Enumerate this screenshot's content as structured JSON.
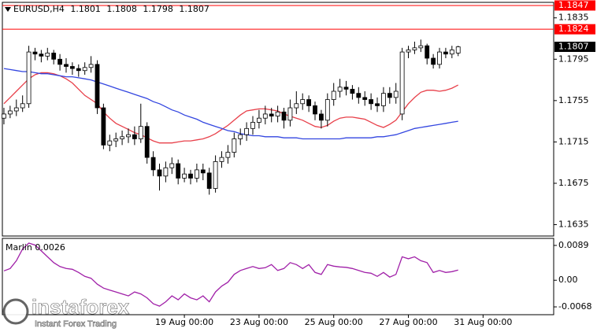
{
  "chart_data": [
    {
      "type": "candlestick",
      "symbol": "EURUSD,H4",
      "xlim": [
        -0.25,
        88.35
      ],
      "ylim": [
        1.1624,
        1.185
      ],
      "yticks": [
        1.1635,
        1.1675,
        1.1715,
        1.1755,
        1.1795,
        1.1835
      ],
      "levels": [
        {
          "value": 1.1847,
          "color": "#ff0000"
        },
        {
          "value": 1.1824,
          "color": "#ff0000"
        }
      ],
      "up_color": "#ffffff",
      "down_color": "#000000",
      "open": [
        1.1738,
        1.1742,
        1.1745,
        1.1748,
        1.1752,
        1.1802,
        1.18,
        1.1798,
        1.1801,
        1.1795,
        1.179,
        1.1788,
        1.1786,
        1.1784,
        1.1787,
        1.179,
        1.1748,
        1.1712,
        1.1716,
        1.1718,
        1.172,
        1.1722,
        1.1718,
        1.173,
        1.17,
        1.1688,
        1.1682,
        1.169,
        1.1694,
        1.168,
        1.1684,
        1.168,
        1.1688,
        1.1685,
        1.167,
        1.1696,
        1.17,
        1.1705,
        1.1718,
        1.1722,
        1.1728,
        1.1734,
        1.1738,
        1.1742,
        1.174,
        1.1744,
        1.1736,
        1.1748,
        1.1752,
        1.1756,
        1.175,
        1.1742,
        1.1736,
        1.1756,
        1.1764,
        1.1768,
        1.1766,
        1.1762,
        1.1758,
        1.1756,
        1.1752,
        1.175,
        1.1762,
        1.1758,
        1.1742,
        1.1802,
        1.1804,
        1.1806,
        1.1808,
        1.1796,
        1.179,
        1.1802,
        1.18,
        1.1801
      ],
      "high": [
        1.1748,
        1.175,
        1.1756,
        1.176,
        1.1808,
        1.1806,
        1.1804,
        1.1806,
        1.1804,
        1.18,
        1.1796,
        1.1792,
        1.179,
        1.1792,
        1.1798,
        1.1794,
        1.1752,
        1.1722,
        1.1724,
        1.1726,
        1.1728,
        1.173,
        1.1752,
        1.1734,
        1.1706,
        1.1694,
        1.1696,
        1.17,
        1.1698,
        1.169,
        1.1688,
        1.1694,
        1.1694,
        1.169,
        1.1702,
        1.1706,
        1.1712,
        1.1724,
        1.1728,
        1.1734,
        1.174,
        1.1746,
        1.175,
        1.1748,
        1.175,
        1.1748,
        1.1756,
        1.1764,
        1.1762,
        1.176,
        1.1754,
        1.1746,
        1.1762,
        1.1772,
        1.1776,
        1.1774,
        1.177,
        1.1768,
        1.1764,
        1.1762,
        1.1758,
        1.1768,
        1.1768,
        1.1772,
        1.1806,
        1.1808,
        1.1812,
        1.1814,
        1.181,
        1.18,
        1.1806,
        1.1806,
        1.1808,
        1.1808
      ],
      "low": [
        1.1732,
        1.1738,
        1.174,
        1.1744,
        1.1748,
        1.1794,
        1.1792,
        1.1794,
        1.179,
        1.1784,
        1.1782,
        1.178,
        1.1778,
        1.178,
        1.1782,
        1.1742,
        1.1708,
        1.1706,
        1.171,
        1.1712,
        1.1714,
        1.1712,
        1.1714,
        1.1694,
        1.1682,
        1.1668,
        1.1676,
        1.1684,
        1.1674,
        1.1676,
        1.1674,
        1.1676,
        1.1678,
        1.1664,
        1.1666,
        1.169,
        1.1694,
        1.17,
        1.1712,
        1.1716,
        1.1722,
        1.1728,
        1.1732,
        1.1734,
        1.1734,
        1.1728,
        1.173,
        1.1742,
        1.1746,
        1.1744,
        1.1736,
        1.1728,
        1.173,
        1.175,
        1.1758,
        1.176,
        1.1756,
        1.1752,
        1.175,
        1.1746,
        1.1744,
        1.1744,
        1.1752,
        1.1752,
        1.1736,
        1.1796,
        1.18,
        1.1802,
        1.179,
        1.1786,
        1.1786,
        1.1796,
        1.1796,
        1.1798
      ],
      "close": [
        1.1742,
        1.1745,
        1.1748,
        1.1752,
        1.1802,
        1.18,
        1.1798,
        1.1801,
        1.1795,
        1.179,
        1.1788,
        1.1786,
        1.1784,
        1.1787,
        1.179,
        1.1748,
        1.1712,
        1.1716,
        1.1718,
        1.172,
        1.1722,
        1.1718,
        1.173,
        1.17,
        1.1688,
        1.1682,
        1.169,
        1.1694,
        1.168,
        1.1684,
        1.168,
        1.1688,
        1.1685,
        1.167,
        1.1696,
        1.17,
        1.1705,
        1.1718,
        1.1722,
        1.1728,
        1.1734,
        1.1738,
        1.1742,
        1.174,
        1.1744,
        1.1736,
        1.1748,
        1.1752,
        1.1756,
        1.175,
        1.1742,
        1.1736,
        1.1756,
        1.1764,
        1.1768,
        1.1766,
        1.1762,
        1.1758,
        1.1756,
        1.1752,
        1.175,
        1.1762,
        1.1758,
        1.1764,
        1.1802,
        1.1804,
        1.1806,
        1.1808,
        1.1796,
        1.179,
        1.1802,
        1.18,
        1.1804,
        1.1807
      ],
      "series": [
        {
          "color": "#e8404a",
          "values": [
            1.1752,
            1.1758,
            1.1764,
            1.177,
            1.1776,
            1.178,
            1.1782,
            1.1782,
            1.1781,
            1.1779,
            1.1776,
            1.1772,
            1.1766,
            1.176,
            1.1756,
            1.1752,
            1.1744,
            1.1738,
            1.1733,
            1.173,
            1.1727,
            1.1724,
            1.1722,
            1.1719,
            1.1716,
            1.1714,
            1.1714,
            1.1714,
            1.1715,
            1.1716,
            1.1716,
            1.1717,
            1.1718,
            1.172,
            1.1723,
            1.1727,
            1.1731,
            1.1736,
            1.1741,
            1.1745,
            1.1746,
            1.1747,
            1.1747,
            1.1746,
            1.1745,
            1.1742,
            1.174,
            1.1738,
            1.1736,
            1.1733,
            1.173,
            1.1729,
            1.1731,
            1.1735,
            1.1738,
            1.1739,
            1.1739,
            1.1738,
            1.1737,
            1.1734,
            1.1731,
            1.1729,
            1.1732,
            1.1736,
            1.1744,
            1.1752,
            1.1758,
            1.1763,
            1.1765,
            1.1765,
            1.1764,
            1.1765,
            1.1767,
            1.177
          ]
        },
        {
          "color": "#3346e0",
          "values": [
            1.1786,
            1.1785,
            1.1784,
            1.1783,
            1.1783,
            1.1782,
            1.1781,
            1.1781,
            1.178,
            1.1779,
            1.1778,
            1.1778,
            1.1777,
            1.1776,
            1.1775,
            1.1773,
            1.1771,
            1.1769,
            1.1767,
            1.1765,
            1.1763,
            1.1761,
            1.1759,
            1.1757,
            1.1754,
            1.1752,
            1.1749,
            1.1746,
            1.1744,
            1.1741,
            1.1739,
            1.1737,
            1.1734,
            1.1732,
            1.173,
            1.1728,
            1.1726,
            1.1725,
            1.1723,
            1.1722,
            1.1721,
            1.1721,
            1.172,
            1.172,
            1.172,
            1.1719,
            1.1719,
            1.1719,
            1.1718,
            1.1718,
            1.1718,
            1.1718,
            1.1718,
            1.1718,
            1.1718,
            1.1719,
            1.1719,
            1.1719,
            1.1719,
            1.1719,
            1.172,
            1.172,
            1.1721,
            1.1722,
            1.1724,
            1.1726,
            1.1728,
            1.1729,
            1.173,
            1.1731,
            1.1732,
            1.1733,
            1.1734,
            1.1735
          ]
        }
      ]
    },
    {
      "type": "line",
      "name": "Marlin",
      "color": "#a020a8",
      "xlim": [
        -0.25,
        88.35
      ],
      "ylim": [
        -0.0088,
        0.0107
      ],
      "yticks": [
        0.0089,
        {
          "value": 0,
          "label": "0.00"
        },
        -0.0068
      ],
      "xticks": [
        {
          "value": 29,
          "label": "19 Aug 00:00"
        },
        {
          "value": 41,
          "label": "23 Aug 00:00"
        },
        {
          "value": 53,
          "label": "25 Aug 00:00"
        },
        {
          "value": 65,
          "label": "27 Aug 00:00"
        },
        {
          "value": 77,
          "label": "31 Aug 00:00"
        }
      ],
      "values": [
        0.0024,
        0.003,
        0.005,
        0.008,
        0.0095,
        0.009,
        0.0075,
        0.006,
        0.0045,
        0.0035,
        0.003,
        0.0028,
        0.002,
        0.001,
        0.0005,
        -0.001,
        -0.002,
        -0.0025,
        -0.003,
        -0.0035,
        -0.004,
        -0.003,
        -0.0035,
        -0.0045,
        -0.006,
        -0.0066,
        -0.0055,
        -0.004,
        -0.005,
        -0.0035,
        -0.0045,
        -0.005,
        -0.004,
        -0.0055,
        -0.003,
        -0.0015,
        -0.0005,
        0.0015,
        0.0025,
        0.003,
        0.0035,
        0.003,
        0.0032,
        0.004,
        0.0025,
        0.003,
        0.0045,
        0.004,
        0.003,
        0.004,
        0.002,
        0.0015,
        0.004,
        0.0036,
        0.0034,
        0.0033,
        0.003,
        0.0025,
        0.002,
        0.0018,
        0.001,
        0.002,
        0.0008,
        0.0015,
        0.006,
        0.0055,
        0.006,
        0.005,
        0.0045,
        0.002,
        0.0025,
        0.002,
        0.0022,
        0.0026
      ]
    }
  ],
  "watermark": {
    "brand": "instaforex",
    "tagline": "Instant Forex Trading"
  }
}
